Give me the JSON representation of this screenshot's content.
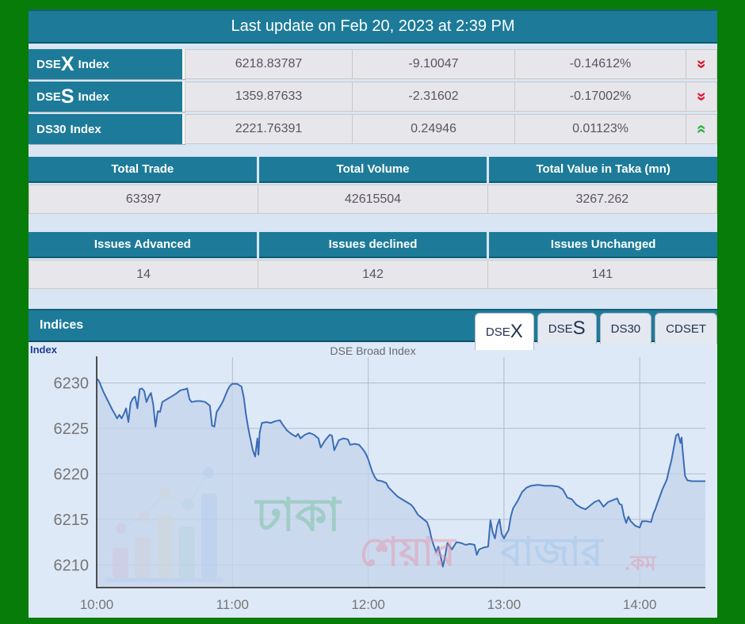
{
  "header": {
    "title": "Last update on Feb 20, 2023 at 2:39 PM"
  },
  "indices_table": {
    "rows": [
      {
        "name_prefix": "DSE",
        "name_big": "X",
        "name_suffix": "Index",
        "value": "6218.83787",
        "change": "-9.10047",
        "change_pct": "-0.14612%",
        "direction": "down"
      },
      {
        "name_prefix": "DSE",
        "name_big": "S",
        "name_suffix": "Index",
        "value": "1359.87633",
        "change": "-2.31602",
        "change_pct": "-0.17002%",
        "direction": "down"
      },
      {
        "name_prefix": "DS30",
        "name_big": "",
        "name_suffix": "Index",
        "value": "2221.76391",
        "change": "0.24946",
        "change_pct": "0.01123%",
        "direction": "up"
      }
    ],
    "down_color": "#e3102a",
    "up_color": "#2eae3e"
  },
  "totals": {
    "headers": [
      "Total Trade",
      "Total Volume",
      "Total Value in Taka (mn)"
    ],
    "values": [
      "63397",
      "42615504",
      "3267.262"
    ]
  },
  "issues": {
    "headers": [
      "Issues Advanced",
      "Issues declined",
      "Issues Unchanged"
    ],
    "values": [
      "14",
      "142",
      "141"
    ]
  },
  "indices_panel": {
    "title": "Indices",
    "tabs": [
      {
        "prefix": "DSE",
        "big": "X",
        "label": "",
        "active": true
      },
      {
        "prefix": "DSE",
        "big": "S",
        "label": "",
        "active": false
      },
      {
        "prefix": "",
        "big": "",
        "label": "DS30",
        "active": false
      },
      {
        "prefix": "",
        "big": "",
        "label": "CDSET",
        "active": false
      }
    ]
  },
  "chart_data": {
    "type": "area",
    "title": "DSE Broad Index",
    "ylabel": "Index",
    "x_unit": "minutes after 10:00",
    "xlim": [
      0,
      269
    ],
    "ylim": [
      6207.5,
      6232.4
    ],
    "yticks": [
      6210,
      6215,
      6220,
      6225,
      6230
    ],
    "xticks": [
      {
        "t": 0,
        "label": "10:00"
      },
      {
        "t": 60,
        "label": "11:00"
      },
      {
        "t": 120,
        "label": "12:00"
      },
      {
        "t": 180,
        "label": "13:00"
      },
      {
        "t": 240,
        "label": "14:00"
      }
    ],
    "grid": true,
    "legend": "none",
    "line_color": "#3a6db6",
    "fill_color": "#c5d4ec",
    "watermark": {
      "words": [
        "ঢাকা",
        "শেয়ার",
        "বাজার",
        ".কম"
      ],
      "word_colors": [
        "#6fbf97",
        "#e794a4",
        "#9cc6ec",
        "#e794a4"
      ],
      "logo_colors": [
        "#ef8fa3",
        "#f5c08a",
        "#f3dc7a",
        "#7fd0a8",
        "#6fb1f0"
      ]
    },
    "points": [
      [
        0,
        6230.5
      ],
      [
        1,
        6230.2
      ],
      [
        3,
        6229.0
      ],
      [
        5,
        6228.0
      ],
      [
        7,
        6227.0
      ],
      [
        8,
        6226.6
      ],
      [
        9,
        6226.1
      ],
      [
        10,
        6226.5
      ],
      [
        11,
        6226.1
      ],
      [
        12,
        6226.6
      ],
      [
        13,
        6227.2
      ],
      [
        14,
        6225.7
      ],
      [
        15,
        6227.8
      ],
      [
        16,
        6228.3
      ],
      [
        17,
        6228.5
      ],
      [
        18,
        6227.2
      ],
      [
        19,
        6229.3
      ],
      [
        20,
        6229.4
      ],
      [
        21,
        6229.1
      ],
      [
        22,
        6227.9
      ],
      [
        23,
        6228.5
      ],
      [
        24,
        6228.9
      ],
      [
        25,
        6227.6
      ],
      [
        26,
        6225.2
      ],
      [
        27,
        6226.9
      ],
      [
        28,
        6226.8
      ],
      [
        29,
        6227.9
      ],
      [
        31,
        6228.2
      ],
      [
        33,
        6228.5
      ],
      [
        35,
        6228.8
      ],
      [
        37,
        6229.2
      ],
      [
        39,
        6229.3
      ],
      [
        40,
        6229.4
      ],
      [
        41,
        6228.2
      ],
      [
        42,
        6227.9
      ],
      [
        44,
        6228.0
      ],
      [
        46,
        6228.0
      ],
      [
        48,
        6227.9
      ],
      [
        50,
        6227.5
      ],
      [
        51,
        6225.3
      ],
      [
        52,
        6225.2
      ],
      [
        53,
        6226.8
      ],
      [
        54,
        6227.2
      ],
      [
        55,
        6227.6
      ],
      [
        56,
        6228.1
      ],
      [
        57,
        6228.7
      ],
      [
        58,
        6229.3
      ],
      [
        59,
        6229.7
      ],
      [
        60,
        6229.9
      ],
      [
        62,
        6229.9
      ],
      [
        64,
        6229.6
      ],
      [
        65,
        6228.4
      ],
      [
        66,
        6226.5
      ],
      [
        67,
        6225.0
      ],
      [
        68,
        6223.8
      ],
      [
        69,
        6222.6
      ],
      [
        70,
        6221.9
      ],
      [
        71,
        6223.9
      ],
      [
        71.5,
        6222.1
      ],
      [
        72,
        6224.5
      ],
      [
        73,
        6225.6
      ],
      [
        75,
        6225.7
      ],
      [
        77,
        6225.6
      ],
      [
        79,
        6225.8
      ],
      [
        81,
        6225.9
      ],
      [
        82,
        6225.5
      ],
      [
        84,
        6224.8
      ],
      [
        86,
        6224.4
      ],
      [
        88,
        6224.1
      ],
      [
        89,
        6224.4
      ],
      [
        90,
        6223.9
      ],
      [
        92,
        6224.3
      ],
      [
        94,
        6224.5
      ],
      [
        96,
        6224.3
      ],
      [
        98,
        6223.9
      ],
      [
        99,
        6222.9
      ],
      [
        101,
        6223.7
      ],
      [
        103,
        6224.3
      ],
      [
        104,
        6224.2
      ],
      [
        105,
        6222.6
      ],
      [
        107,
        6223.7
      ],
      [
        109,
        6223.9
      ],
      [
        111,
        6223.8
      ],
      [
        112,
        6223.2
      ],
      [
        114,
        6223.3
      ],
      [
        116,
        6223.2
      ],
      [
        118,
        6222.6
      ],
      [
        119,
        6222.2
      ],
      [
        120,
        6221.6
      ],
      [
        121,
        6220.8
      ],
      [
        122,
        6220.1
      ],
      [
        123,
        6219.6
      ],
      [
        124,
        6219.3
      ],
      [
        126,
        6219.2
      ],
      [
        128,
        6219.0
      ],
      [
        129,
        6218.5
      ],
      [
        131,
        6218.0
      ],
      [
        133,
        6217.5
      ],
      [
        135,
        6217.2
      ],
      [
        137,
        6216.9
      ],
      [
        139,
        6216.6
      ],
      [
        140,
        6216.3
      ],
      [
        142,
        6215.5
      ],
      [
        144,
        6215.1
      ],
      [
        146,
        6214.7
      ],
      [
        147,
        6214.0
      ],
      [
        148,
        6212.9
      ],
      [
        149,
        6212.1
      ],
      [
        150,
        6211.4
      ],
      [
        151,
        6212.0
      ],
      [
        152,
        6210.9
      ],
      [
        153,
        6209.8
      ],
      [
        154,
        6211.0
      ],
      [
        155,
        6212.4
      ],
      [
        157,
        6211.7
      ],
      [
        159,
        6212.5
      ],
      [
        161,
        6212.4
      ],
      [
        163,
        6212.2
      ],
      [
        165,
        6212.3
      ],
      [
        167,
        6212.2
      ],
      [
        168,
        6211.1
      ],
      [
        169,
        6211.7
      ],
      [
        171,
        6211.9
      ],
      [
        173,
        6212.0
      ],
      [
        174,
        6214.9
      ],
      [
        175,
        6213.6
      ],
      [
        176,
        6212.9
      ],
      [
        177,
        6214.3
      ],
      [
        178,
        6215.0
      ],
      [
        179,
        6213.4
      ],
      [
        180,
        6212.9
      ],
      [
        181,
        6213.4
      ],
      [
        182,
        6213.8
      ],
      [
        183,
        6215.3
      ],
      [
        184,
        6216.2
      ],
      [
        186,
        6217.0
      ],
      [
        188,
        6218.0
      ],
      [
        190,
        6218.5
      ],
      [
        192,
        6218.7
      ],
      [
        195,
        6218.8
      ],
      [
        198,
        6218.7
      ],
      [
        201,
        6218.7
      ],
      [
        204,
        6218.6
      ],
      [
        206,
        6218.3
      ],
      [
        208,
        6217.4
      ],
      [
        210,
        6217.2
      ],
      [
        212,
        6216.6
      ],
      [
        214,
        6216.3
      ],
      [
        216,
        6216.1
      ],
      [
        218,
        6216.5
      ],
      [
        220,
        6216.9
      ],
      [
        222,
        6217.1
      ],
      [
        224,
        6216.4
      ],
      [
        226,
        6216.9
      ],
      [
        228,
        6217.1
      ],
      [
        230,
        6217.3
      ],
      [
        231,
        6216.7
      ],
      [
        232,
        6216.6
      ],
      [
        233,
        6215.4
      ],
      [
        234,
        6214.6
      ],
      [
        235,
        6215.3
      ],
      [
        236,
        6214.8
      ],
      [
        238,
        6214.3
      ],
      [
        240,
        6214.1
      ],
      [
        241,
        6214.8
      ],
      [
        243,
        6214.8
      ],
      [
        245,
        6214.7
      ],
      [
        246,
        6215.6
      ],
      [
        247,
        6216.2
      ],
      [
        248,
        6216.9
      ],
      [
        250,
        6218.3
      ],
      [
        252,
        6219.4
      ],
      [
        253,
        6220.5
      ],
      [
        254,
        6221.5
      ],
      [
        255,
        6222.8
      ],
      [
        256,
        6224.2
      ],
      [
        257,
        6224.4
      ],
      [
        258,
        6223.4
      ],
      [
        258.5,
        6224.0
      ],
      [
        259,
        6222.5
      ],
      [
        260,
        6219.8
      ],
      [
        261,
        6219.3
      ],
      [
        263,
        6219.2
      ],
      [
        266,
        6219.2
      ],
      [
        269,
        6219.2
      ]
    ]
  }
}
